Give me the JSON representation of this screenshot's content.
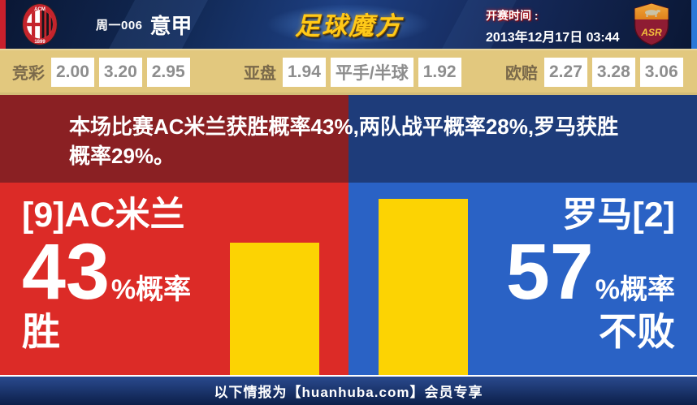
{
  "header": {
    "match_code": "周一006",
    "league": "意甲",
    "brand": "足球魔方",
    "kickoff_label": "开赛时间 :",
    "kickoff_datetime": "2013年12月17日 03:44",
    "home_crest_top_text": "ACM",
    "home_crest_bottom_text": "1899",
    "away_crest_monogram": "ASR"
  },
  "odds": {
    "groups": [
      {
        "label": "竞彩",
        "values": [
          "2.00",
          "3.20",
          "2.95"
        ]
      },
      {
        "label": "亚盘",
        "values": [
          "1.94",
          "平手/半球",
          "1.92"
        ]
      },
      {
        "label": "欧赔",
        "values": [
          "2.27",
          "3.28",
          "3.06"
        ]
      }
    ]
  },
  "summary": {
    "text": "本场比赛AC米兰获胜概率43%,两队战平概率28%,罗马获胜概率29%。"
  },
  "home_panel": {
    "team": "[9]AC米兰",
    "percent": "43",
    "suffix": "%概率",
    "outcome": "胜"
  },
  "away_panel": {
    "team": "罗马[2]",
    "percent": "57",
    "suffix": "%概率",
    "outcome": "不败"
  },
  "footer": {
    "text": "以下情报为【huanhuba.com】会员专享"
  },
  "colors": {
    "header_bg": "#15295a",
    "left_edge_red": "#c9202c",
    "right_edge_blue": "#2a78d8",
    "brand_gold": "#ffc918",
    "odds_bg": "#e2c87e",
    "odds_label": "#7a694a",
    "odds_value": "#8d8d8d",
    "summary_home_bg": "#8a2023",
    "summary_away_bg": "#1e3c7a",
    "home_panel_bg": "#dc2b27",
    "away_panel_bg": "#2a62c5",
    "bar_yellow": "#fcd303",
    "footer_bg": "#0c1f4a"
  },
  "chart_data": {
    "type": "bar",
    "categories": [
      "[9]AC米兰 胜",
      "罗马[2] 不败"
    ],
    "values": [
      43,
      57
    ],
    "unit": "%",
    "title": "本场比赛AC米兰获胜概率43%,两队战平概率28%,罗马获胜概率29%。",
    "probabilities": {
      "home_win_pct": 43,
      "draw_pct": 28,
      "away_win_pct": 29,
      "away_unbeaten_pct": 57
    },
    "ylim": [
      0,
      100
    ],
    "bar_color": "#fcd303",
    "legend": "none",
    "grid": false
  }
}
